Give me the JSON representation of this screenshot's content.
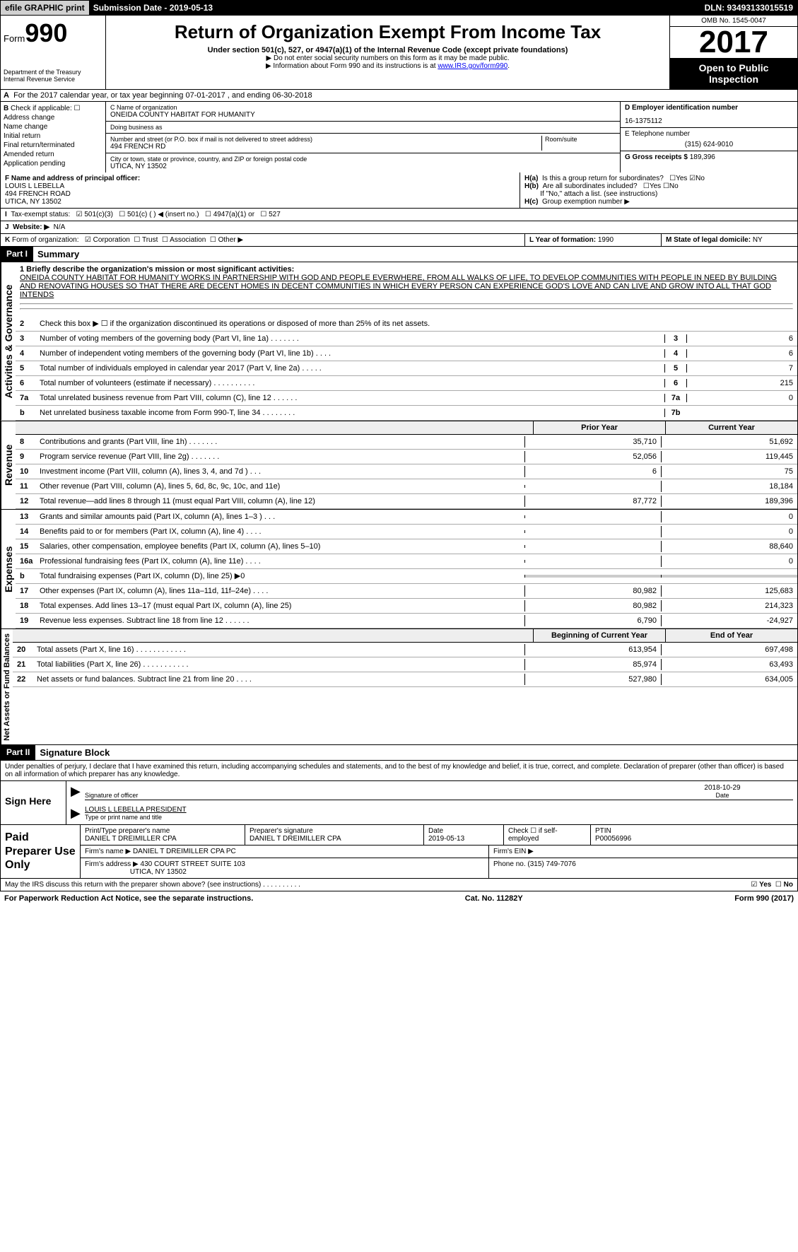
{
  "topbar": {
    "efile": "efile GRAPHIC print",
    "sub": "Submission Date - 2019-05-13",
    "dln": "DLN: 93493133015519"
  },
  "header": {
    "form_prefix": "Form",
    "form_no": "990",
    "title": "Return of Organization Exempt From Income Tax",
    "subtitle": "Under section 501(c), 527, or 4947(a)(1) of the Internal Revenue Code (except private foundations)",
    "note1": "▶ Do not enter social security numbers on this form as it may be made public.",
    "note2": "▶ Information about Form 990 and its instructions is at ",
    "note2_link": "www.IRS.gov/form990",
    "dept": "Department of the Treasury\nInternal Revenue Service",
    "omb": "OMB No. 1545-0047",
    "year": "2017",
    "open": "Open to Public Inspection"
  },
  "rowA": "For the 2017 calendar year, or tax year beginning 07-01-2017        , and ending 06-30-2018",
  "B": {
    "label": "Check if applicable:",
    "opts": [
      "Address change",
      "Name change",
      "Initial return",
      "Final return/terminated",
      "Amended return",
      "Application pending"
    ]
  },
  "C": {
    "name_lbl": "C Name of organization",
    "name": "ONEIDA COUNTY HABITAT FOR HUMANITY",
    "dba_lbl": "Doing business as",
    "dba": "",
    "street_lbl": "Number and street (or P.O. box if mail is not delivered to street address)",
    "street": "494 FRENCH RD",
    "room_lbl": "Room/suite",
    "city_lbl": "City or town, state or province, country, and ZIP or foreign postal code",
    "city": "UTICA, NY  13502"
  },
  "D": {
    "lbl": "D Employer identification number",
    "val": "16-1375112"
  },
  "E": {
    "lbl": "E Telephone number",
    "val": "(315) 624-9010"
  },
  "G": {
    "lbl": "G Gross receipts $",
    "val": "189,396"
  },
  "F": {
    "lbl": "F  Name and address of principal officer:",
    "name": "LOUIS L LEBELLA",
    "addr1": "494 FRENCH ROAD",
    "addr2": "UTICA, NY  13502"
  },
  "H": {
    "ha": "Is this a group return for subordinates?",
    "ha_no": "No",
    "hb": "Are all subordinates included?",
    "hb_note": "If \"No,\" attach a list. (see instructions)",
    "hc": "Group exemption number ▶"
  },
  "I": {
    "lbl": "Tax-exempt status:",
    "opts": [
      "501(c)(3)",
      "501(c) (  ) ◀ (insert no.)",
      "4947(a)(1) or",
      "527"
    ]
  },
  "J": {
    "lbl": "Website: ▶",
    "val": "N/A"
  },
  "K": {
    "lbl": "Form of organization:",
    "opts": [
      "Corporation",
      "Trust",
      "Association",
      "Other ▶"
    ]
  },
  "L": {
    "lbl": "L Year of formation:",
    "val": "1990"
  },
  "M": {
    "lbl": "M State of legal domicile:",
    "val": "NY"
  },
  "part1": {
    "label": "Part I",
    "title": "Summary"
  },
  "mission": {
    "lbl": "1  Briefly describe the organization's mission or most significant activities:",
    "text": "ONEIDA COUNTY HABITAT FOR HUMANITY WORKS IN PARTNERSHIP WITH GOD AND PEOPLE EVERWHERE, FROM ALL WALKS OF LIFE, TO DEVELOP COMMUNITIES WITH PEOPLE IN NEED BY BUILDING AND RENOVATING HOUSES SO THAT THERE ARE DECENT HOMES IN DECENT COMMUNITIES IN WHICH EVERY PERSON CAN EXPERIENCE GOD'S LOVE AND CAN LIVE AND GROW INTO ALL THAT GOD INTENDS"
  },
  "gov": {
    "side": "Activities & Governance",
    "lines": [
      {
        "n": "2",
        "t": "Check this box ▶ ☐ if the organization discontinued its operations or disposed of more than 25% of its net assets."
      },
      {
        "n": "3",
        "t": "Number of voting members of the governing body (Part VI, line 1a)  .    .    .    .    .    .    .",
        "k": "3",
        "v": "6"
      },
      {
        "n": "4",
        "t": "Number of independent voting members of the governing body (Part VI, line 1b)  .    .    .    .",
        "k": "4",
        "v": "6"
      },
      {
        "n": "5",
        "t": "Total number of individuals employed in calendar year 2017 (Part V, line 2a)  .    .    .    .    .",
        "k": "5",
        "v": "7"
      },
      {
        "n": "6",
        "t": "Total number of volunteers (estimate if necessary)  .    .    .    .    .    .    .    .    .    .",
        "k": "6",
        "v": "215"
      },
      {
        "n": "7a",
        "t": "Total unrelated business revenue from Part VIII, column (C), line 12  .    .    .    .    .    .",
        "k": "7a",
        "v": "0"
      },
      {
        "n": "b",
        "t": "Net unrelated business taxable income from Form 990-T, line 34  .    .    .    .    .    .    .    .",
        "k": "7b",
        "v": ""
      }
    ]
  },
  "th": {
    "prior": "Prior Year",
    "current": "Current Year"
  },
  "rev": {
    "side": "Revenue",
    "lines": [
      {
        "n": "8",
        "t": "Contributions and grants (Part VIII, line 1h)  .    .    .    .    .    .    .",
        "p": "35,710",
        "c": "51,692"
      },
      {
        "n": "9",
        "t": "Program service revenue (Part VIII, line 2g)  .    .    .    .    .    .    .",
        "p": "52,056",
        "c": "119,445"
      },
      {
        "n": "10",
        "t": "Investment income (Part VIII, column (A), lines 3, 4, and 7d )  .    .    .",
        "p": "6",
        "c": "75"
      },
      {
        "n": "11",
        "t": "Other revenue (Part VIII, column (A), lines 5, 6d, 8c, 9c, 10c, and 11e)",
        "p": "",
        "c": "18,184"
      },
      {
        "n": "12",
        "t": "Total revenue—add lines 8 through 11 (must equal Part VIII, column (A), line 12)",
        "p": "87,772",
        "c": "189,396"
      }
    ]
  },
  "exp": {
    "side": "Expenses",
    "lines": [
      {
        "n": "13",
        "t": "Grants and similar amounts paid (Part IX, column (A), lines 1–3 )  .    .    .",
        "p": "",
        "c": "0"
      },
      {
        "n": "14",
        "t": "Benefits paid to or for members (Part IX, column (A), line 4)  .    .    .    .",
        "p": "",
        "c": "0"
      },
      {
        "n": "15",
        "t": "Salaries, other compensation, employee benefits (Part IX, column (A), lines 5–10)",
        "p": "",
        "c": "88,640"
      },
      {
        "n": "16a",
        "t": "Professional fundraising fees (Part IX, column (A), line 11e)  .    .    .    .",
        "p": "",
        "c": "0"
      },
      {
        "n": "b",
        "t": "Total fundraising expenses (Part IX, column (D), line 25) ▶0",
        "p": "",
        "c": "",
        "shade": true
      },
      {
        "n": "17",
        "t": "Other expenses (Part IX, column (A), lines 11a–11d, 11f–24e)  .    .    .    .",
        "p": "80,982",
        "c": "125,683"
      },
      {
        "n": "18",
        "t": "Total expenses. Add lines 13–17 (must equal Part IX, column (A), line 25)",
        "p": "80,982",
        "c": "214,323"
      },
      {
        "n": "19",
        "t": "Revenue less expenses. Subtract line 18 from line 12  .    .    .    .    .    .",
        "p": "6,790",
        "c": "-24,927"
      }
    ]
  },
  "th2": {
    "begin": "Beginning of Current Year",
    "end": "End of Year"
  },
  "net": {
    "side": "Net Assets or Fund Balances",
    "lines": [
      {
        "n": "20",
        "t": "Total assets (Part X, line 16)  .    .    .    .    .    .    .    .    .    .    .    .",
        "p": "613,954",
        "c": "697,498"
      },
      {
        "n": "21",
        "t": "Total liabilities (Part X, line 26)  .    .    .    .    .    .    .    .    .    .    .",
        "p": "85,974",
        "c": "63,493"
      },
      {
        "n": "22",
        "t": "Net assets or fund balances. Subtract line 21 from line 20  .    .    .    .",
        "p": "527,980",
        "c": "634,005"
      }
    ]
  },
  "part2": {
    "label": "Part II",
    "title": "Signature Block"
  },
  "penalty": "Under penalties of perjury, I declare that I have examined this return, including accompanying schedules and statements, and to the best of my knowledge and belief, it is true, correct, and complete. Declaration of preparer (other than officer) is based on all information of which preparer has any knowledge.",
  "sign": {
    "here": "Sign Here",
    "sig_lbl": "Signature of officer",
    "date": "2018-10-29",
    "date_lbl": "Date",
    "name": "LOUIS L LEBELLA  PRESIDENT",
    "name_lbl": "Type or print name and title"
  },
  "paid": {
    "title": "Paid Preparer Use Only",
    "print_lbl": "Print/Type preparer's name",
    "print": "DANIEL T DREIMILLER CPA",
    "psig_lbl": "Preparer's signature",
    "psig": "DANIEL T DREIMILLER CPA",
    "pdate_lbl": "Date",
    "pdate": "2019-05-13",
    "check_lbl": "Check ☐ if self-employed",
    "ptin_lbl": "PTIN",
    "ptin": "P00056996",
    "firm_lbl": "Firm's name    ▶",
    "firm": "DANIEL T DREIMILLER CPA PC",
    "ein_lbl": "Firm's EIN ▶",
    "addr_lbl": "Firm's address ▶",
    "addr": "430 COURT STREET SUITE 103",
    "addr2": "UTICA, NY  13502",
    "phone_lbl": "Phone no.",
    "phone": "(315) 749-7076"
  },
  "discuss": "May the IRS discuss this return with the preparer shown above? (see instructions)  .    .    .    .    .    .    .    .    .    .",
  "discuss_yes": "Yes",
  "discuss_no": "No",
  "footer": {
    "l": "For Paperwork Reduction Act Notice, see the separate instructions.",
    "m": "Cat. No. 11282Y",
    "r": "Form 990 (2017)"
  }
}
